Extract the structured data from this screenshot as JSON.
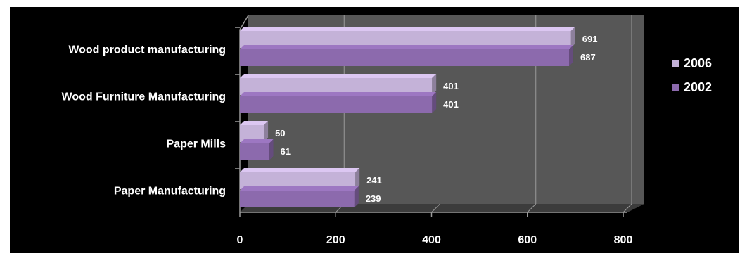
{
  "chart_data": {
    "type": "bar",
    "orientation": "horizontal",
    "style": "3d",
    "categories": [
      "Wood product manufacturing",
      "Wood Furniture Manufacturing",
      "Paper Mills",
      "Paper Manufacturing"
    ],
    "series": [
      {
        "name": "2006",
        "values": [
          691,
          401,
          50,
          241
        ],
        "color": "#c4b2d8"
      },
      {
        "name": "2002",
        "values": [
          687,
          401,
          61,
          239
        ],
        "color": "#8c6aad"
      }
    ],
    "x_ticks": [
      "0",
      "200",
      "400",
      "600",
      "800"
    ],
    "xlim": [
      0,
      800
    ],
    "grid": true,
    "legend_position": "right",
    "title": "",
    "xlabel": "",
    "ylabel": ""
  },
  "colors": {
    "background": "#000000",
    "plot_wall": "#575757",
    "plot_floor": "#3c3c3c",
    "gridline": "#9a9a9a",
    "text": "#ffffff"
  }
}
